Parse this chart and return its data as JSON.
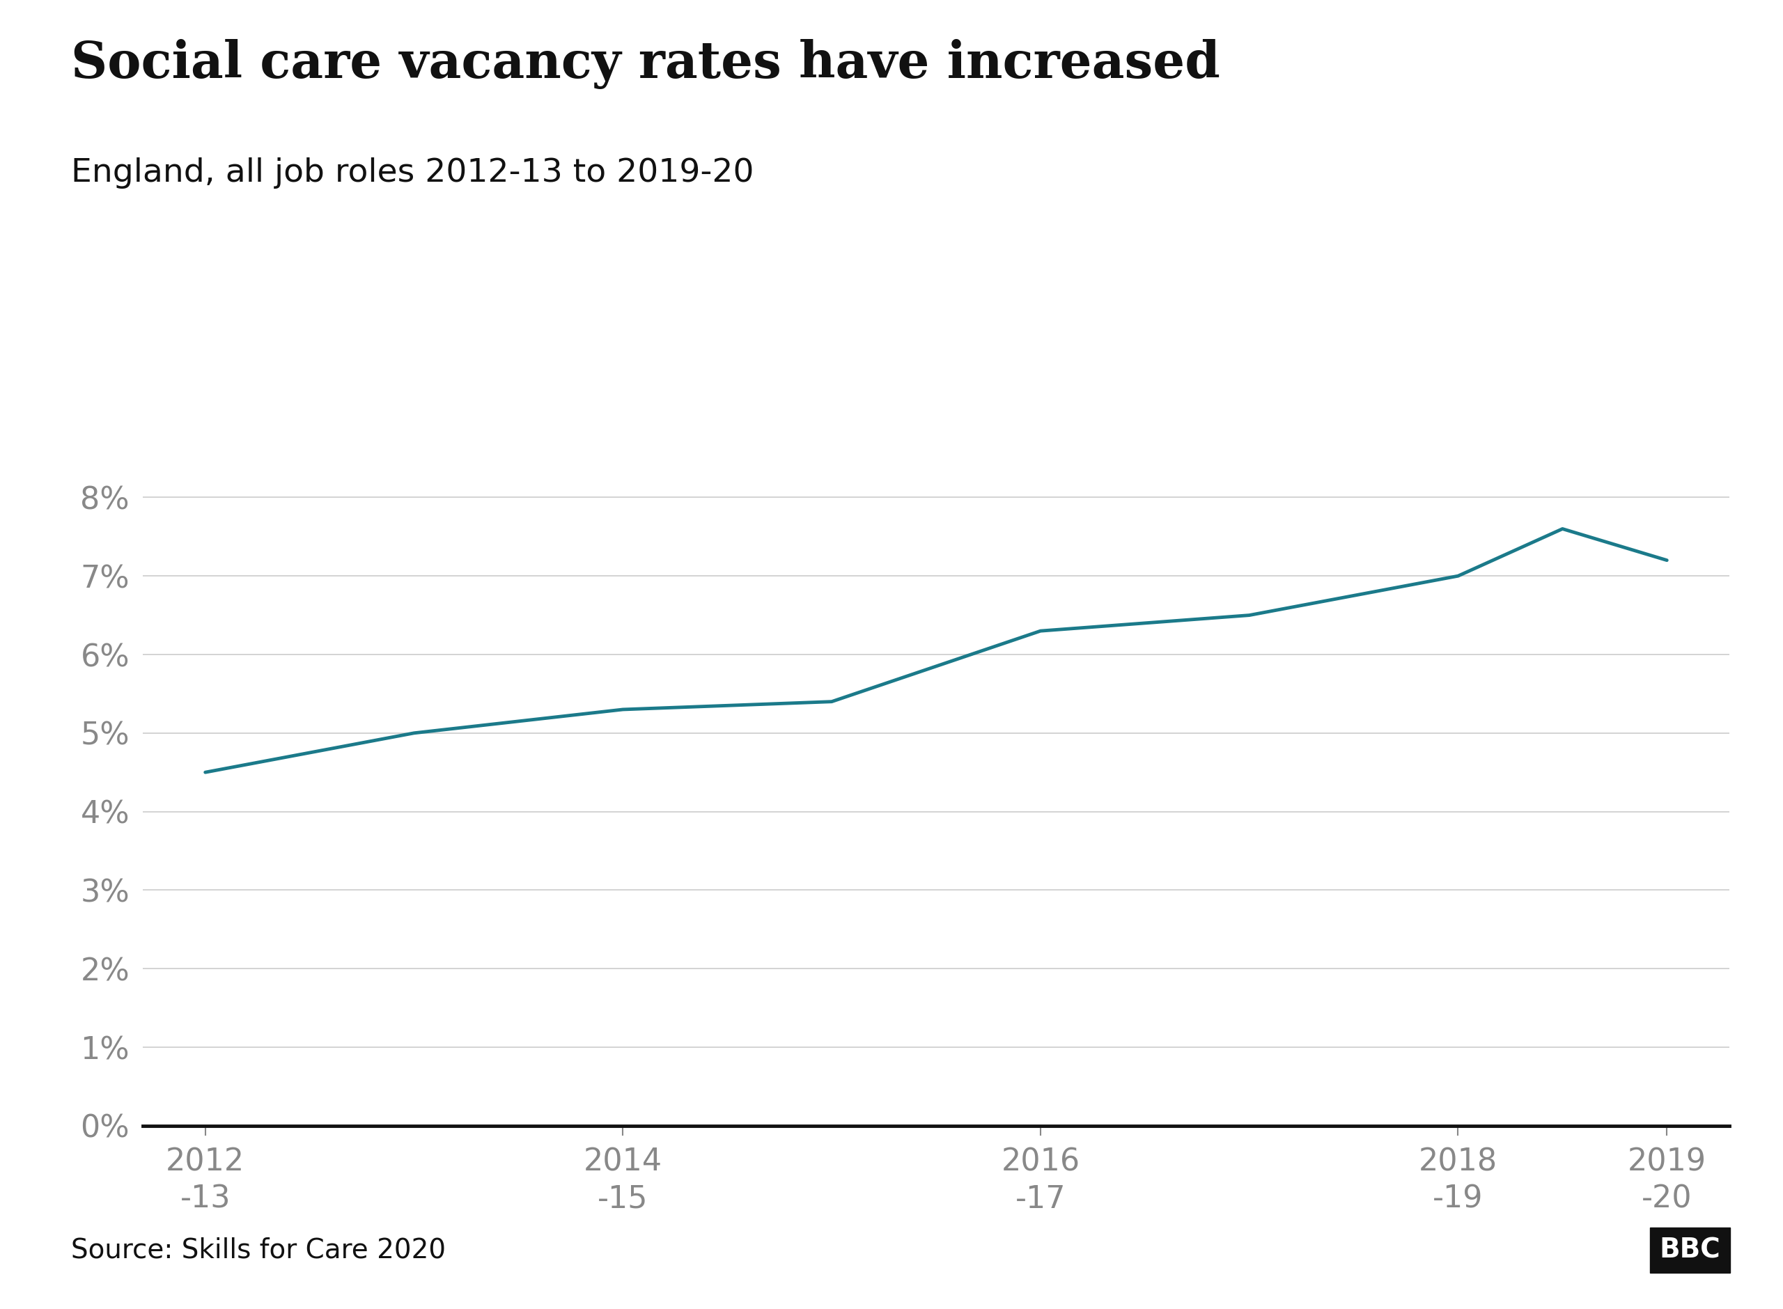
{
  "title": "Social care vacancy rates have increased",
  "subtitle": "England, all job roles 2012-13 to 2019-20",
  "source": "Source: Skills for Care 2020",
  "x_tick_positions": [
    0,
    2,
    4,
    6,
    7
  ],
  "x_tick_labels": [
    "2012\n-13",
    "2014\n-15",
    "2016\n-17",
    "2018\n-19",
    "2019\n-20"
  ],
  "data_x": [
    0,
    1,
    2,
    3,
    4,
    5,
    6,
    6.5,
    7
  ],
  "data_y": [
    0.045,
    0.05,
    0.053,
    0.054,
    0.063,
    0.065,
    0.07,
    0.076,
    0.072
  ],
  "line_color": "#1b7a8a",
  "line_width": 3.5,
  "background_color": "#ffffff",
  "grid_color": "#cccccc",
  "tick_label_color": "#888888",
  "title_color": "#111111",
  "subtitle_color": "#111111",
  "source_color": "#111111",
  "ylim": [
    0,
    0.09
  ],
  "yticks": [
    0,
    0.01,
    0.02,
    0.03,
    0.04,
    0.05,
    0.06,
    0.07,
    0.08
  ],
  "title_fontsize": 52,
  "subtitle_fontsize": 34,
  "tick_fontsize": 32,
  "source_fontsize": 28
}
